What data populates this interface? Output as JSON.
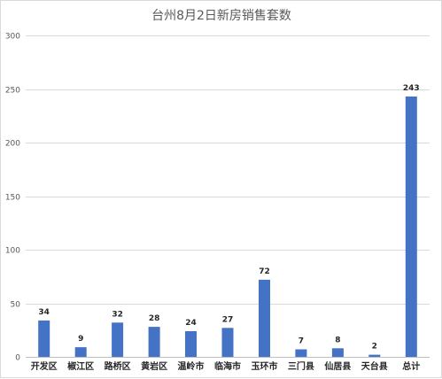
{
  "chart_data": {
    "type": "bar",
    "title": "台州8月2日新房销售套数",
    "categories": [
      "开发区",
      "椒江区",
      "路桥区",
      "黄岩区",
      "温岭市",
      "临海市",
      "玉环市",
      "三门县",
      "仙居县",
      "天台县",
      "总计"
    ],
    "values": [
      34,
      9,
      32,
      28,
      24,
      27,
      72,
      7,
      8,
      2,
      243
    ],
    "ylim": [
      0,
      300
    ],
    "yticks": [
      0,
      50,
      100,
      150,
      200,
      250,
      300
    ],
    "xlabel": "",
    "ylabel": "",
    "grid": true,
    "legend": "none",
    "bar_color": "#4472c4"
  }
}
